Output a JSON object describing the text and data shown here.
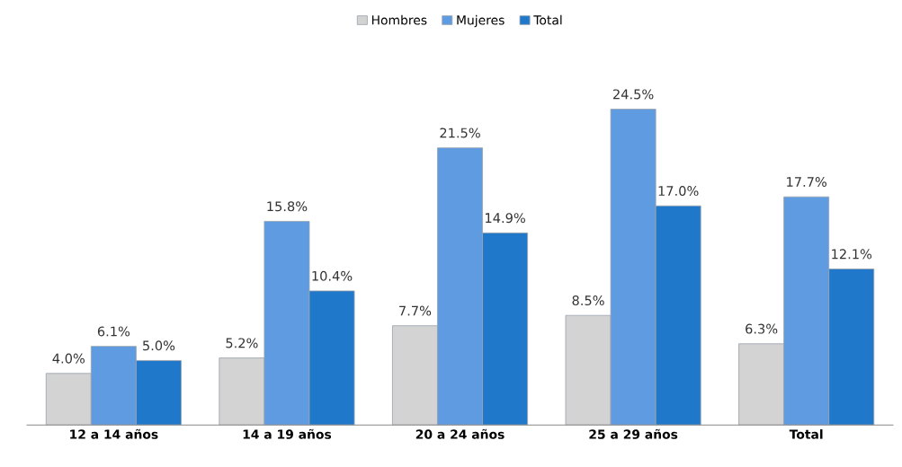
{
  "chart_data": {
    "type": "bar",
    "categories": [
      "12 a 14 años",
      "14 a 19 años",
      "20 a 24 años",
      "25 a 29 años",
      "Total"
    ],
    "series": [
      {
        "name": "Hombres",
        "color": "#d3d3d3",
        "values": [
          4.0,
          5.2,
          7.7,
          8.5,
          6.3
        ],
        "value_labels": [
          "4.0%",
          "5.2%",
          "7.7%",
          "8.5%",
          "6.3%"
        ]
      },
      {
        "name": "Mujeres",
        "color": "#5e9be0",
        "values": [
          6.1,
          15.8,
          21.5,
          24.5,
          17.7
        ],
        "value_labels": [
          "6.1%",
          "15.8%",
          "21.5%",
          "24.5%",
          "17.7%"
        ]
      },
      {
        "name": "Total",
        "color": "#1f78c9",
        "values": [
          5.0,
          10.4,
          14.9,
          17.0,
          12.1
        ],
        "value_labels": [
          "5.0%",
          "10.4%",
          "14.9%",
          "17.0%",
          "12.1%"
        ]
      }
    ],
    "tick_labels": "x",
    "grid": false,
    "legend": "top"
  }
}
